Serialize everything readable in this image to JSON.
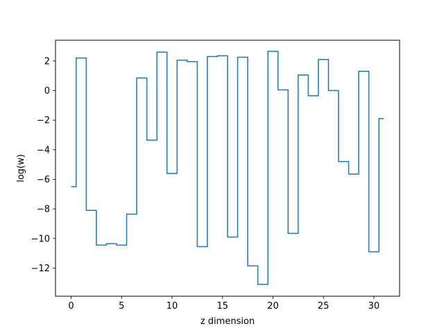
{
  "chart_data": {
    "type": "line",
    "drawstyle": "steps-mid",
    "title": "",
    "xlabel": "z dimension",
    "ylabel": "log(w)",
    "xlim": [
      -1.55,
      32.55
    ],
    "ylim": [
      -13.9,
      3.4
    ],
    "xticks": [
      0,
      5,
      10,
      15,
      20,
      25,
      30
    ],
    "yticks": [
      2,
      0,
      -2,
      -4,
      -6,
      -8,
      -10,
      -12
    ],
    "ytick_labels": [
      "2",
      "0",
      "−2",
      "−4",
      "−6",
      "−8",
      "−10",
      "−12"
    ],
    "grid": false,
    "series": [
      {
        "color": "#1f77b4",
        "x": [
          0,
          1,
          2,
          3,
          4,
          5,
          6,
          7,
          8,
          9,
          10,
          11,
          12,
          13,
          14,
          15,
          16,
          17,
          18,
          19,
          20,
          21,
          22,
          23,
          24,
          25,
          26,
          27,
          28,
          29,
          30,
          31
        ],
        "y": [
          -6.5,
          2.2,
          -8.1,
          -10.45,
          -10.35,
          -10.45,
          -8.35,
          0.85,
          -3.35,
          2.6,
          -5.6,
          2.05,
          1.95,
          -10.55,
          2.3,
          2.35,
          -9.9,
          2.25,
          -11.85,
          -13.1,
          2.65,
          0.05,
          -9.65,
          1.05,
          -0.35,
          2.1,
          0.0,
          -4.8,
          -5.65,
          1.3,
          -10.9,
          -1.9
        ]
      }
    ]
  }
}
